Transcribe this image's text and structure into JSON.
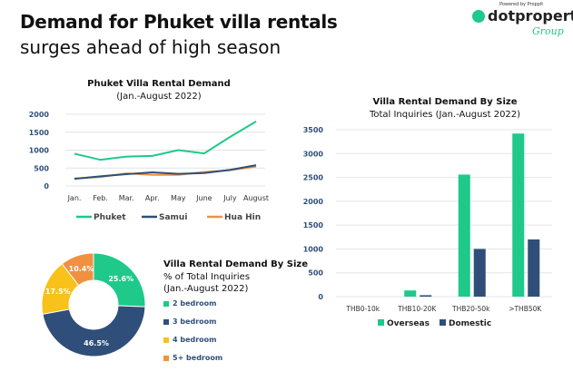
{
  "header": {
    "title": "Demand for Phuket villa rentals",
    "subtitle": "surges ahead of high season"
  },
  "logo": {
    "text": "dotproperty",
    "sub": "Group",
    "powered": "Powered by Propplt"
  },
  "colors": {
    "green": "#1ec98a",
    "navy": "#2f4f7a",
    "orange": "#f0913f",
    "yellow": "#f8c21a",
    "axis": "#2f4f7a"
  },
  "chart_data": [
    {
      "type": "line",
      "title": "Phuket Villa Rental Demand",
      "subtitle": "(Jan.-August 2022)",
      "categories": [
        "Jan.",
        "Feb.",
        "Mar.",
        "Apr.",
        "May",
        "June",
        "July",
        "August"
      ],
      "yticks": [
        0,
        500,
        1000,
        1500,
        2000
      ],
      "ylim": [
        0,
        2000
      ],
      "legend_position": "bottom",
      "series": [
        {
          "name": "Phuket",
          "color": "#1ec98a",
          "values": [
            900,
            730,
            820,
            840,
            1000,
            910,
            1370,
            1800
          ]
        },
        {
          "name": "Samui",
          "color": "#2f4f7a",
          "values": [
            200,
            270,
            330,
            380,
            340,
            360,
            450,
            580
          ]
        },
        {
          "name": "Hua Hin",
          "color": "#f0913f",
          "values": [
            210,
            250,
            350,
            310,
            310,
            390,
            440,
            540
          ]
        }
      ]
    },
    {
      "type": "bar",
      "title": "Villa Rental Demand By Size",
      "subtitle": "Total Inquiries (Jan.-August 2022)",
      "categories": [
        "THB0-10k",
        "THB10-20K",
        "THB20-50k",
        ">THB50K"
      ],
      "yticks": [
        0,
        500,
        1000,
        1500,
        2000,
        2500,
        3000,
        3500
      ],
      "ylim": [
        0,
        3500
      ],
      "legend_position": "bottom",
      "series": [
        {
          "name": "Overseas",
          "color": "#1ec98a",
          "values": [
            0,
            130,
            2560,
            3420
          ]
        },
        {
          "name": "Domestic",
          "color": "#2f4f7a",
          "values": [
            0,
            30,
            1000,
            1200
          ]
        }
      ]
    },
    {
      "type": "pie",
      "title": "Villa Rental Demand By Size",
      "subtitle": "% of Total Inquiries",
      "subtitle2": "(Jan.-August 2022)",
      "slices": [
        {
          "label": "2 bedroom",
          "value": 25.6,
          "text": "25.6%",
          "color": "#1ec98a"
        },
        {
          "label": "3 bedroom",
          "value": 46.5,
          "text": "46.5%",
          "color": "#2f4f7a"
        },
        {
          "label": "4 bedroom",
          "value": 17.5,
          "text": "17.5%",
          "color": "#f8c21a"
        },
        {
          "label": "5+ bedroom",
          "value": 10.4,
          "text": "10.4%",
          "color": "#f0913f"
        }
      ]
    }
  ]
}
